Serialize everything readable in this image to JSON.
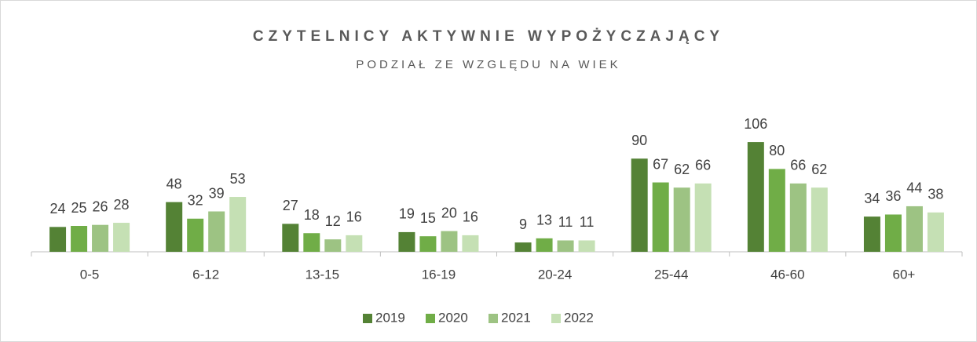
{
  "chart_data": {
    "type": "bar",
    "title": "CZYTELNICY AKTYWNIE WYPOŻYCZAJĄCY",
    "subtitle": "PODZIAŁ ZE WZGLĘDU NA WIEK",
    "categories": [
      "0-5",
      "6-12",
      "13-15",
      "16-19",
      "20-24",
      "25-44",
      "46-60",
      "60+"
    ],
    "series": [
      {
        "name": "2019",
        "color": "#548235",
        "values": [
          24,
          48,
          27,
          19,
          9,
          90,
          106,
          34
        ]
      },
      {
        "name": "2020",
        "color": "#70ad47",
        "values": [
          25,
          32,
          18,
          15,
          13,
          67,
          80,
          36
        ]
      },
      {
        "name": "2021",
        "color": "#9dc383",
        "values": [
          26,
          39,
          12,
          20,
          11,
          62,
          66,
          44
        ]
      },
      {
        "name": "2022",
        "color": "#c5e0b4",
        "values": [
          28,
          53,
          16,
          16,
          11,
          66,
          62,
          38
        ]
      }
    ],
    "legend": "bottom"
  }
}
